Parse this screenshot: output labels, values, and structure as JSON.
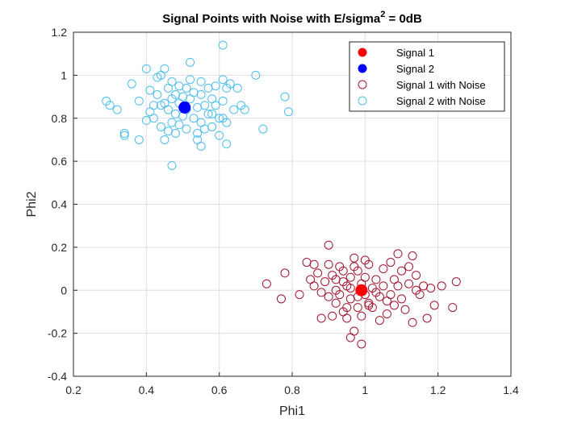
{
  "chart_data": {
    "type": "scatter",
    "title": "Signal Points with Noise with E/sigma",
    "title_sup": "2",
    "title_suffix": " = 0dB",
    "xlabel": "Phi1",
    "ylabel": "Phi2",
    "xlim": [
      0.2,
      1.4
    ],
    "ylim": [
      -0.4,
      1.2
    ],
    "xticks": [
      0.2,
      0.4,
      0.6,
      0.8,
      1,
      1.2,
      1.4
    ],
    "xtick_labels": [
      "0.2",
      "0.4",
      "0.6",
      "0.8",
      "1",
      "1.2",
      "1.4"
    ],
    "yticks": [
      -0.4,
      -0.2,
      0,
      0.2,
      0.4,
      0.6,
      0.8,
      1,
      1.2
    ],
    "ytick_labels": [
      "-0.4",
      "-0.2",
      "0",
      "0.2",
      "0.4",
      "0.6",
      "0.8",
      "1",
      "1.2"
    ],
    "grid": true,
    "legend_position": "top-right",
    "series": [
      {
        "name": "Signal 1",
        "marker": "filled-circle",
        "color": "#ff0000",
        "points": [
          [
            0.99,
            0.0
          ]
        ]
      },
      {
        "name": "Signal 2",
        "marker": "filled-circle",
        "color": "#0000ff",
        "points": [
          [
            0.505,
            0.85
          ]
        ]
      },
      {
        "name": "Signal 1 with Noise",
        "marker": "open-circle",
        "color": "#a2142f",
        "points": [
          [
            0.9,
            0.21
          ],
          [
            0.73,
            0.03
          ],
          [
            0.77,
            -0.04
          ],
          [
            0.78,
            0.08
          ],
          [
            0.82,
            -0.02
          ],
          [
            0.84,
            0.13
          ],
          [
            0.85,
            0.05
          ],
          [
            0.86,
            0.02
          ],
          [
            0.86,
            0.12
          ],
          [
            0.87,
            0.08
          ],
          [
            0.88,
            -0.01
          ],
          [
            0.88,
            -0.13
          ],
          [
            0.89,
            0.04
          ],
          [
            0.9,
            -0.03
          ],
          [
            0.9,
            0.12
          ],
          [
            0.91,
            0.07
          ],
          [
            0.91,
            -0.12
          ],
          [
            0.92,
            0.0
          ],
          [
            0.92,
            -0.06
          ],
          [
            0.93,
            0.11
          ],
          [
            0.93,
            -0.02
          ],
          [
            0.94,
            0.09
          ],
          [
            0.94,
            0.04
          ],
          [
            0.94,
            -0.1
          ],
          [
            0.95,
            0.02
          ],
          [
            0.95,
            -0.08
          ],
          [
            0.95,
            -0.13
          ],
          [
            0.96,
            0.06
          ],
          [
            0.96,
            0.01
          ],
          [
            0.96,
            -0.04
          ],
          [
            0.97,
            0.15
          ],
          [
            0.97,
            0.11
          ],
          [
            0.97,
            -0.19
          ],
          [
            0.98,
            -0.03
          ],
          [
            0.98,
            -0.08
          ],
          [
            0.98,
            0.09
          ],
          [
            0.99,
            0.03
          ],
          [
            0.99,
            -0.12
          ],
          [
            0.99,
            -0.25
          ],
          [
            1.0,
            0.14
          ],
          [
            1.0,
            0.06
          ],
          [
            1.0,
            -0.02
          ],
          [
            1.01,
            0.12
          ],
          [
            1.01,
            -0.06
          ],
          [
            1.02,
            0.01
          ],
          [
            1.02,
            -0.08
          ],
          [
            1.03,
            -0.01
          ],
          [
            1.03,
            0.05
          ],
          [
            1.04,
            -0.03
          ],
          [
            1.04,
            -0.14
          ],
          [
            1.05,
            0.1
          ],
          [
            1.05,
            0.02
          ],
          [
            1.06,
            -0.05
          ],
          [
            1.06,
            -0.11
          ],
          [
            1.07,
            0.13
          ],
          [
            1.07,
            -0.02
          ],
          [
            1.08,
            0.05
          ],
          [
            1.08,
            -0.07
          ],
          [
            1.09,
            0.17
          ],
          [
            1.09,
            0.02
          ],
          [
            1.1,
            -0.04
          ],
          [
            1.1,
            0.09
          ],
          [
            1.11,
            -0.09
          ],
          [
            1.12,
            0.03
          ],
          [
            1.13,
            0.16
          ],
          [
            1.13,
            -0.15
          ],
          [
            1.14,
            0.07
          ],
          [
            1.14,
            0.0
          ],
          [
            1.15,
            -0.02
          ],
          [
            1.16,
            0.02
          ],
          [
            1.17,
            -0.13
          ],
          [
            1.18,
            0.01
          ],
          [
            1.19,
            -0.07
          ],
          [
            1.21,
            0.02
          ],
          [
            1.24,
            -0.08
          ],
          [
            1.25,
            0.04
          ],
          [
            1.12,
            0.11
          ],
          [
            0.92,
            0.05
          ],
          [
            1.01,
            -0.07
          ],
          [
            0.96,
            -0.22
          ]
        ]
      },
      {
        "name": "Signal 2 with Noise",
        "marker": "open-circle",
        "color": "#4dbeee",
        "points": [
          [
            0.29,
            0.88
          ],
          [
            0.3,
            0.86
          ],
          [
            0.32,
            0.84
          ],
          [
            0.34,
            0.73
          ],
          [
            0.34,
            0.72
          ],
          [
            0.36,
            0.96
          ],
          [
            0.38,
            0.7
          ],
          [
            0.38,
            0.88
          ],
          [
            0.4,
            1.03
          ],
          [
            0.4,
            0.79
          ],
          [
            0.41,
            0.93
          ],
          [
            0.41,
            0.83
          ],
          [
            0.42,
            0.86
          ],
          [
            0.42,
            0.8
          ],
          [
            0.43,
            0.91
          ],
          [
            0.43,
            0.99
          ],
          [
            0.44,
            0.76
          ],
          [
            0.44,
            1.0
          ],
          [
            0.45,
            0.87
          ],
          [
            0.45,
            0.7
          ],
          [
            0.45,
            1.03
          ],
          [
            0.46,
            0.94
          ],
          [
            0.46,
            0.84
          ],
          [
            0.46,
            0.74
          ],
          [
            0.47,
            0.97
          ],
          [
            0.47,
            0.89
          ],
          [
            0.47,
            0.78
          ],
          [
            0.47,
            0.58
          ],
          [
            0.48,
            0.91
          ],
          [
            0.48,
            0.82
          ],
          [
            0.48,
            0.73
          ],
          [
            0.49,
            0.95
          ],
          [
            0.49,
            0.87
          ],
          [
            0.49,
            0.77
          ],
          [
            0.5,
            0.9
          ],
          [
            0.5,
            0.81
          ],
          [
            0.5,
            0.85
          ],
          [
            0.51,
            0.94
          ],
          [
            0.51,
            0.84
          ],
          [
            0.51,
            0.75
          ],
          [
            0.52,
            1.06
          ],
          [
            0.52,
            0.98
          ],
          [
            0.52,
            0.89
          ],
          [
            0.53,
            0.8
          ],
          [
            0.53,
            0.92
          ],
          [
            0.54,
            0.73
          ],
          [
            0.54,
            0.85
          ],
          [
            0.54,
            0.7
          ],
          [
            0.55,
            0.91
          ],
          [
            0.55,
            0.78
          ],
          [
            0.55,
            0.67
          ],
          [
            0.56,
            0.86
          ],
          [
            0.56,
            0.75
          ],
          [
            0.57,
            0.94
          ],
          [
            0.57,
            0.82
          ],
          [
            0.58,
            0.89
          ],
          [
            0.58,
            0.76
          ],
          [
            0.59,
            0.95
          ],
          [
            0.59,
            0.86
          ],
          [
            0.6,
            0.8
          ],
          [
            0.6,
            0.72
          ],
          [
            0.61,
            1.14
          ],
          [
            0.61,
            0.98
          ],
          [
            0.61,
            0.88
          ],
          [
            0.62,
            0.94
          ],
          [
            0.62,
            0.78
          ],
          [
            0.62,
            0.68
          ],
          [
            0.63,
            0.96
          ],
          [
            0.64,
            0.84
          ],
          [
            0.65,
            0.94
          ],
          [
            0.66,
            0.86
          ],
          [
            0.67,
            0.84
          ],
          [
            0.7,
            1.0
          ],
          [
            0.72,
            0.75
          ],
          [
            0.78,
            0.9
          ],
          [
            0.79,
            0.83
          ],
          [
            0.61,
            0.8
          ],
          [
            0.55,
            0.97
          ],
          [
            0.44,
            0.86
          ],
          [
            0.58,
            0.82
          ]
        ]
      }
    ]
  }
}
